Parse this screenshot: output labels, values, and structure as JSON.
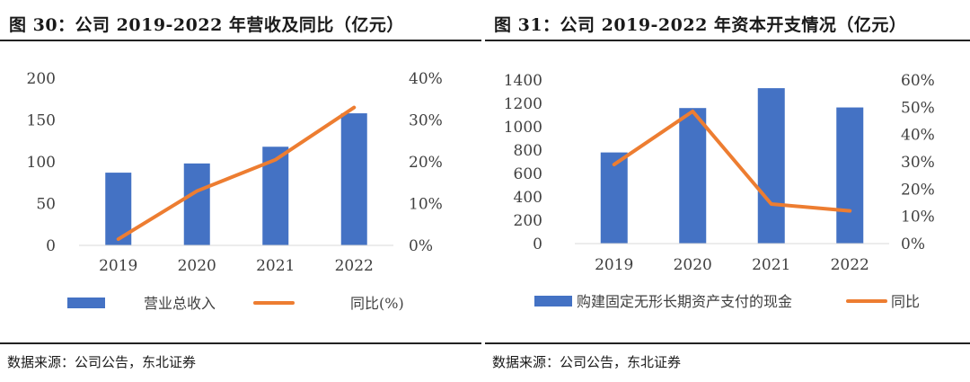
{
  "chart_data": [
    {
      "type": "bar",
      "title": "图 30：公司 2019-2022 年营收及同比（亿元）",
      "categories": [
        "2019",
        "2020",
        "2021",
        "2022"
      ],
      "y_ticks": [
        "0",
        "50",
        "100",
        "150",
        "200"
      ],
      "y2_ticks": [
        "0%",
        "10%",
        "20%",
        "30%",
        "40%"
      ],
      "ylim": [
        0,
        200
      ],
      "y2lim": [
        0,
        40
      ],
      "series": [
        {
          "name": "营业总收入",
          "type": "bar",
          "axis": "left",
          "color": "#4472C4",
          "values": [
            87,
            98,
            118,
            158
          ]
        },
        {
          "name": "同比(%)",
          "type": "line",
          "axis": "right",
          "color": "#ED7D31",
          "values": [
            1.5,
            13,
            20.5,
            33
          ]
        }
      ],
      "legend_position": "bottom",
      "source": "数据来源：公司公告，东北证券"
    },
    {
      "type": "bar",
      "title": "图 31：公司 2019-2022 年资本开支情况（亿元）",
      "categories": [
        "2019",
        "2020",
        "2021",
        "2022"
      ],
      "y_ticks": [
        "0",
        "200",
        "400",
        "600",
        "800",
        "1000",
        "1200",
        "1400"
      ],
      "y2_ticks": [
        "0%",
        "10%",
        "20%",
        "30%",
        "40%",
        "50%",
        "60%"
      ],
      "ylim": [
        0,
        1400
      ],
      "y2lim": [
        0,
        60
      ],
      "series": [
        {
          "name": "购建固定无形长期资产支付的现金",
          "type": "bar",
          "axis": "left",
          "color": "#4472C4",
          "values": [
            780,
            1160,
            1330,
            1165
          ]
        },
        {
          "name": "同比",
          "type": "line",
          "axis": "right",
          "color": "#ED7D31",
          "values": [
            29,
            48.5,
            14.5,
            12
          ]
        }
      ],
      "legend_position": "bottom",
      "source": "数据来源：公司公告，东北证券"
    }
  ]
}
